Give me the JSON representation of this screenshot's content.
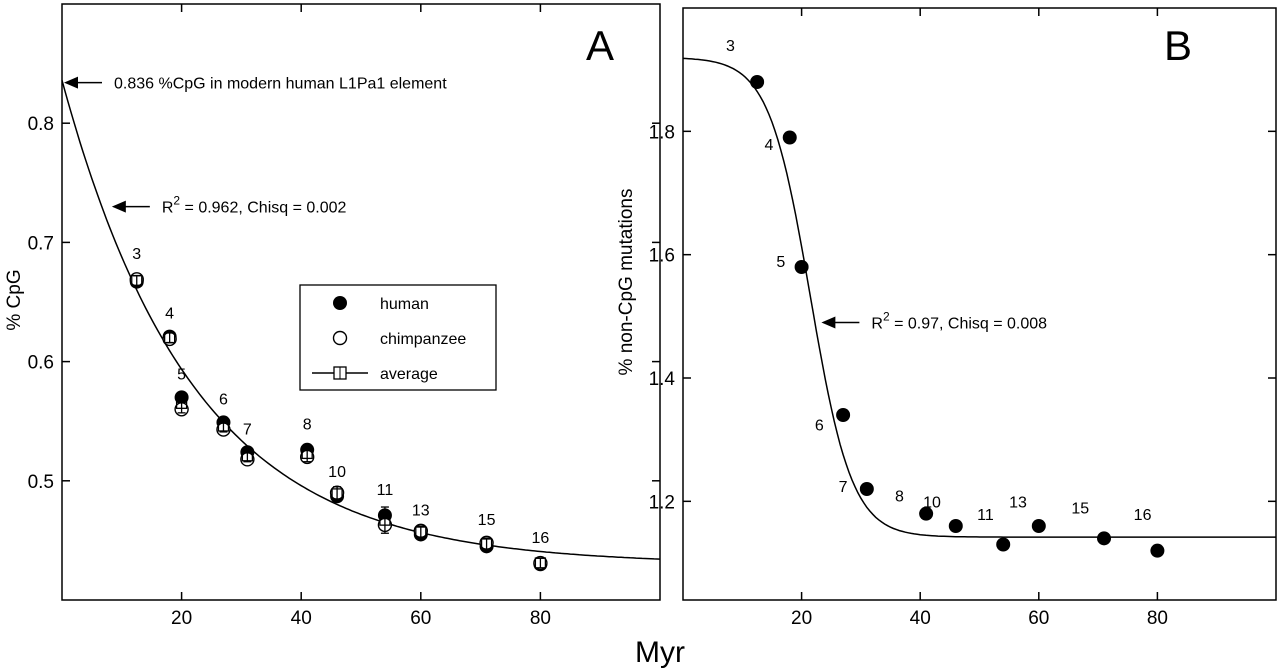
{
  "figure": {
    "shared_xlabel": "Myr"
  },
  "chart_data": [
    {
      "panel": "A",
      "type": "scatter",
      "xlabel": "",
      "ylabel": "% CpG",
      "xlim": [
        0,
        100
      ],
      "ylim": [
        0.4,
        0.9
      ],
      "xticks": [
        20,
        40,
        60,
        80
      ],
      "yticks": [
        0.5,
        0.6,
        0.7,
        0.8
      ],
      "ytick_labels": [
        "0.5",
        "0.6",
        "0.7",
        "0.8"
      ],
      "xtick_labels": [
        "20",
        "40",
        "60",
        "80"
      ],
      "legend": {
        "position": "center",
        "entries": [
          "human",
          "chimpanzee",
          "average"
        ]
      },
      "series": [
        {
          "name": "human",
          "marker": "filled-circle",
          "x": [
            12.5,
            18,
            20,
            27,
            31,
            41,
            46,
            54,
            60,
            71,
            80
          ],
          "y": [
            0.667,
            0.621,
            0.57,
            0.549,
            0.524,
            0.526,
            0.487,
            0.471,
            0.455,
            0.445,
            0.43
          ]
        },
        {
          "name": "chimpanzee",
          "marker": "open-circle",
          "x": [
            12.5,
            18,
            20,
            27,
            31,
            41,
            46,
            54,
            60,
            71,
            80
          ],
          "y": [
            0.669,
            0.619,
            0.56,
            0.543,
            0.518,
            0.52,
            0.49,
            0.463,
            0.458,
            0.448,
            0.431
          ]
        },
        {
          "name": "average",
          "marker": "open-square-errorbar",
          "x": [
            12.5,
            18,
            20,
            27,
            31,
            41,
            46,
            54,
            60,
            71,
            80
          ],
          "y": [
            0.668,
            0.62,
            0.565,
            0.546,
            0.521,
            0.523,
            0.489,
            0.467,
            0.457,
            0.447,
            0.431
          ],
          "err": [
            0.004,
            0.004,
            0.008,
            0.005,
            0.005,
            0.007,
            0.006,
            0.011,
            0.005,
            0.005,
            0.004
          ]
        }
      ],
      "fit": {
        "kind": "exponential decay",
        "y0": 0.43,
        "A": 0.406,
        "tau": 22,
        "x_range": [
          0,
          100
        ]
      },
      "point_labels": [
        {
          "text": "3",
          "x": 12.5,
          "y": 0.686
        },
        {
          "text": "4",
          "x": 18,
          "y": 0.636
        },
        {
          "text": "5",
          "x": 20,
          "y": 0.585
        },
        {
          "text": "6",
          "x": 27,
          "y": 0.564
        },
        {
          "text": "7",
          "x": 31,
          "y": 0.539
        },
        {
          "text": "8",
          "x": 41,
          "y": 0.543
        },
        {
          "text": "10",
          "x": 46,
          "y": 0.503
        },
        {
          "text": "11",
          "x": 54,
          "y": 0.488
        },
        {
          "text": "13",
          "x": 60,
          "y": 0.471
        },
        {
          "text": "15",
          "x": 71,
          "y": 0.463
        },
        {
          "text": "16",
          "x": 80,
          "y": 0.448
        }
      ],
      "annotations": [
        {
          "text": "0.836 %CpG in modern human L1Pa1 element",
          "x": 0,
          "y": 0.834
        },
        {
          "text_main": "R",
          "superscript": "2",
          "text_rest": " = 0.962, Chisq = 0.002",
          "x": 8,
          "y": 0.73
        }
      ]
    },
    {
      "panel": "B",
      "type": "scatter",
      "xlabel": "",
      "ylabel": "% non-CpG mutations",
      "xlim": [
        0,
        100
      ],
      "ylim": [
        1.04,
        2.0
      ],
      "xticks": [
        20,
        40,
        60,
        80
      ],
      "yticks": [
        1.2,
        1.4,
        1.6,
        1.8
      ],
      "ytick_labels": [
        "1.2",
        "1.4",
        "1.6",
        "1.8"
      ],
      "xtick_labels": [
        "20",
        "40",
        "60",
        "80"
      ],
      "series": [
        {
          "name": "",
          "marker": "filled-circle",
          "x": [
            12.5,
            18,
            20,
            27,
            31,
            41,
            46,
            54,
            60,
            71,
            80
          ],
          "y": [
            1.88,
            1.79,
            1.58,
            1.34,
            1.22,
            1.18,
            1.16,
            1.13,
            1.16,
            1.14,
            1.12
          ]
        }
      ],
      "fit": {
        "kind": "sigmoid",
        "top": 1.92,
        "bottom": 1.142,
        "x0": 21.5,
        "width": 3.5,
        "x_range": [
          0,
          100
        ]
      },
      "point_labels": [
        {
          "text": "3",
          "x": 8,
          "y": 1.93
        },
        {
          "text": "4",
          "x": 14.5,
          "y": 1.77
        },
        {
          "text": "5",
          "x": 16.5,
          "y": 1.58
        },
        {
          "text": "6",
          "x": 23,
          "y": 1.315
        },
        {
          "text": "7",
          "x": 27,
          "y": 1.215
        },
        {
          "text": "8",
          "x": 36.5,
          "y": 1.2
        },
        {
          "text": "10",
          "x": 42,
          "y": 1.19
        },
        {
          "text": "11",
          "x": 51,
          "y": 1.17
        },
        {
          "text": "13",
          "x": 56.5,
          "y": 1.19
        },
        {
          "text": "15",
          "x": 67,
          "y": 1.18
        },
        {
          "text": "16",
          "x": 77.5,
          "y": 1.17
        }
      ],
      "annotations": [
        {
          "text_main": "R",
          "superscript": "2",
          "text_rest": " = 0.97, Chisq = 0.008",
          "x": 23,
          "y": 1.49
        }
      ]
    }
  ]
}
